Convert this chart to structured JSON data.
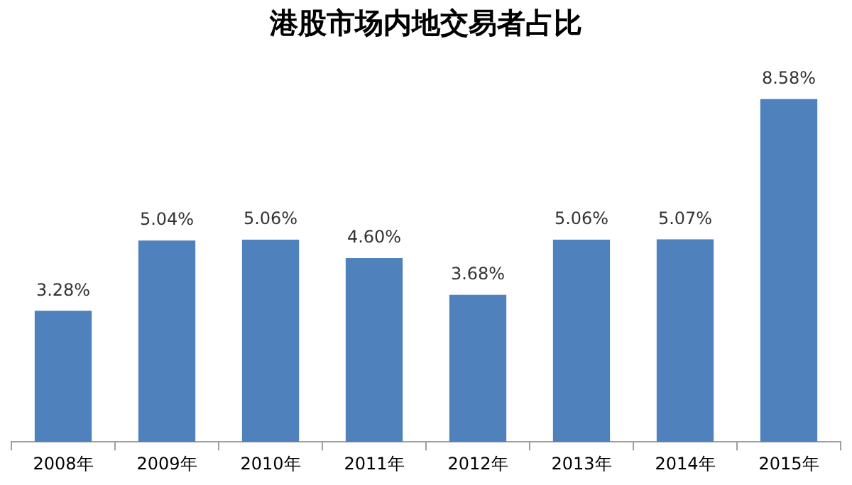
{
  "chart_data": {
    "type": "bar",
    "title": "港股市场内地交易者占比",
    "categories": [
      "2008年",
      "2009年",
      "2010年",
      "2011年",
      "2012年",
      "2013年",
      "2014年",
      "2015年"
    ],
    "values": [
      3.28,
      5.04,
      5.06,
      4.6,
      3.68,
      5.06,
      5.07,
      8.58
    ],
    "value_labels": [
      "3.28%",
      "5.04%",
      "5.06%",
      "4.60%",
      "3.68%",
      "5.06%",
      "5.07%",
      "8.58%"
    ],
    "color": "#4f81bd",
    "grid": false,
    "legend": false
  }
}
